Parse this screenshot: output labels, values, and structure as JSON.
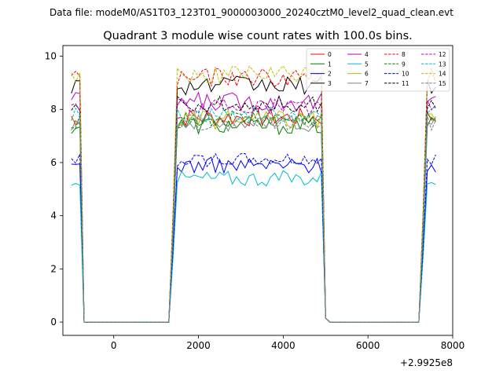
{
  "figure": {
    "suptitle": "Data file: modeM0/AS1T03_123T01_9000003000_20240cztM0_level2_quad_clean.evt",
    "title": "Quadrant 3 module wise count rates with 100.0s bins.",
    "offset_text": "+2.9925e8"
  },
  "chart_data": {
    "type": "line",
    "title": "Quadrant 3 module wise count rates with 100.0s bins.",
    "xlabel": "",
    "ylabel": "",
    "x_offset": 299250000,
    "xlim": [
      -1200,
      8000
    ],
    "ylim": [
      -0.5,
      10.4
    ],
    "xticks": [
      0,
      2000,
      4000,
      6000,
      8000
    ],
    "xtick_labels": [
      "0",
      "2000",
      "4000",
      "6000",
      "8000"
    ],
    "yticks": [
      0,
      2,
      4,
      6,
      8,
      10
    ],
    "ytick_labels": [
      "0",
      "2",
      "4",
      "6",
      "8",
      "10"
    ],
    "grid": false,
    "legend_position": "top-right",
    "legend_columns": 4,
    "x_start": -1000,
    "bin": 100,
    "segments": [
      {
        "from": -1000,
        "to": -800,
        "kind": "high"
      },
      {
        "from": -800,
        "to": -700,
        "kind": "fall"
      },
      {
        "from": -700,
        "to": 1300,
        "kind": "zero"
      },
      {
        "from": 1300,
        "to": 1400,
        "kind": "rise"
      },
      {
        "from": 1400,
        "to": 4900,
        "kind": "high"
      },
      {
        "from": 4900,
        "to": 5100,
        "kind": "fall"
      },
      {
        "from": 5100,
        "to": 7200,
        "kind": "zero"
      },
      {
        "from": 7200,
        "to": 7300,
        "kind": "rise"
      },
      {
        "from": 7300,
        "to": 7600,
        "kind": "high"
      }
    ],
    "series": [
      {
        "name": "0",
        "level": 7.7,
        "noise": 0.35,
        "color": "#ff0000",
        "dash": "solid"
      },
      {
        "name": "1",
        "level": 7.4,
        "noise": 0.35,
        "color": "#008000",
        "dash": "solid"
      },
      {
        "name": "2",
        "level": 5.9,
        "noise": 0.3,
        "color": "#0000ff",
        "dash": "solid"
      },
      {
        "name": "3",
        "level": 8.9,
        "noise": 0.35,
        "color": "#000000",
        "dash": "solid"
      },
      {
        "name": "4",
        "level": 8.3,
        "noise": 0.35,
        "color": "#bf00bf",
        "dash": "solid"
      },
      {
        "name": "5",
        "level": 5.4,
        "noise": 0.3,
        "color": "#00bfbf",
        "dash": "solid"
      },
      {
        "name": "6",
        "level": 7.6,
        "noise": 0.35,
        "color": "#bfbf00",
        "dash": "solid"
      },
      {
        "name": "7",
        "level": 7.5,
        "noise": 0.35,
        "color": "#808080",
        "dash": "solid"
      },
      {
        "name": "8",
        "level": 9.2,
        "noise": 0.35,
        "color": "#ff0000",
        "dash": "dashed"
      },
      {
        "name": "9",
        "level": 7.6,
        "noise": 0.35,
        "color": "#008000",
        "dash": "dashed"
      },
      {
        "name": "10",
        "level": 6.1,
        "noise": 0.25,
        "color": "#0000ff",
        "dash": "dashed"
      },
      {
        "name": "11",
        "level": 8.2,
        "noise": 0.3,
        "color": "#000000",
        "dash": "dashed"
      },
      {
        "name": "12",
        "level": 8.1,
        "noise": 0.3,
        "color": "#bf00bf",
        "dash": "dashed"
      },
      {
        "name": "13",
        "level": 7.8,
        "noise": 0.3,
        "color": "#00bfbf",
        "dash": "dashed"
      },
      {
        "name": "14",
        "level": 9.3,
        "noise": 0.35,
        "color": "#bfbf00",
        "dash": "dashed"
      },
      {
        "name": "15",
        "level": 7.5,
        "noise": 0.3,
        "color": "#808080",
        "dash": "dashed"
      }
    ]
  }
}
